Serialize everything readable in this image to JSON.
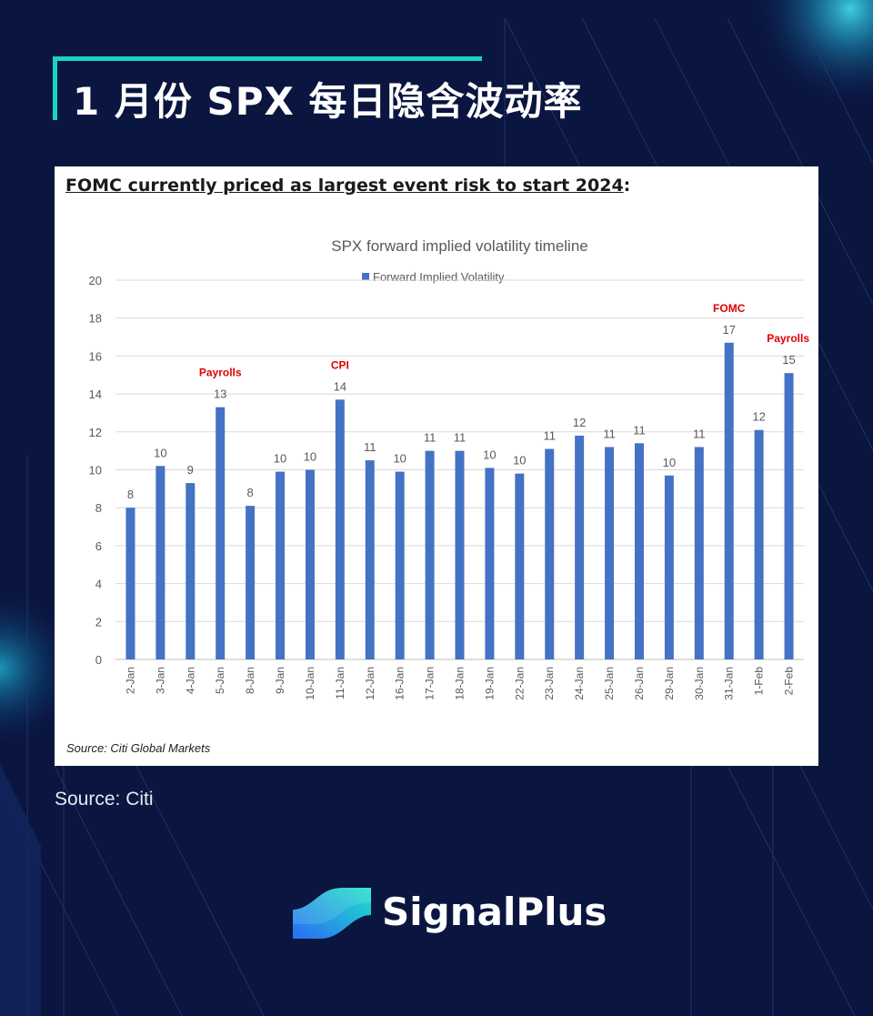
{
  "header": {
    "title": "1 月份 SPX 每日隐含波动率"
  },
  "panel": {
    "heading": "FOMC currently priced as largest event risk to start 2024",
    "heading_suffix": ":",
    "source": "Source: Citi Global Markets"
  },
  "footer": {
    "source": "Source: Citi",
    "brand_name": "SignalPlus"
  },
  "colors": {
    "accent": "#19d3c5",
    "bar": "#4472c4",
    "event_label": "#e00000",
    "background": "#0a1540"
  },
  "chart_data": {
    "type": "bar",
    "title": "SPX forward implied volatility timeline",
    "categories": [
      "2-Jan",
      "3-Jan",
      "4-Jan",
      "5-Jan",
      "8-Jan",
      "9-Jan",
      "10-Jan",
      "11-Jan",
      "12-Jan",
      "16-Jan",
      "17-Jan",
      "18-Jan",
      "19-Jan",
      "22-Jan",
      "23-Jan",
      "24-Jan",
      "25-Jan",
      "26-Jan",
      "29-Jan",
      "30-Jan",
      "31-Jan",
      "1-Feb",
      "2-Feb"
    ],
    "series": [
      {
        "name": "Forward Implied Volatility",
        "values": [
          8.0,
          10.2,
          9.3,
          13.3,
          8.1,
          9.9,
          10.0,
          13.7,
          10.5,
          9.9,
          11.0,
          11.0,
          10.1,
          9.8,
          11.1,
          11.8,
          11.2,
          11.4,
          9.7,
          11.2,
          16.7,
          12.1,
          15.1
        ],
        "data_labels": [
          "8",
          "10",
          "9",
          "13",
          "8",
          "10",
          "10",
          "14",
          "11",
          "10",
          "11",
          "11",
          "10",
          "10",
          "11",
          "12",
          "11",
          "11",
          "10",
          "11",
          "17",
          "12",
          "15"
        ]
      }
    ],
    "annotations": [
      {
        "category": "5-Jan",
        "text": "Payrolls"
      },
      {
        "category": "11-Jan",
        "text": "CPI"
      },
      {
        "category": "31-Jan",
        "text": "FOMC"
      },
      {
        "category": "2-Feb",
        "text": "Payrolls"
      }
    ],
    "ylim": [
      0,
      20
    ],
    "yticks": [
      0,
      2,
      4,
      6,
      8,
      10,
      12,
      14,
      16,
      18,
      20
    ],
    "grid": true,
    "legend": "top-center"
  }
}
